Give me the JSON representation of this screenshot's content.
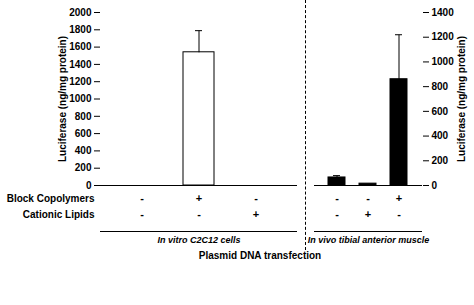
{
  "chart_data": [
    {
      "type": "bar",
      "ylabel": "Luciferase (ng/mg protein)",
      "xlabel": "In vitro C2C12 cells",
      "categories": [
        null,
        null,
        null
      ],
      "values": [
        0,
        1540,
        0
      ],
      "errors": [
        0,
        250,
        0
      ],
      "color": "#ffffff",
      "ylim": [
        0,
        2000
      ],
      "yticks": [
        0,
        200,
        400,
        600,
        800,
        1000,
        1200,
        1400,
        1600,
        1800,
        2000
      ],
      "rows": [
        [
          "-",
          "+",
          "-"
        ],
        [
          "-",
          "-",
          "+"
        ]
      ]
    },
    {
      "type": "bar",
      "ylabel": "Luciferase (ng/mg protein)",
      "xlabel": "In vivo tibial anterior muscle",
      "categories": [
        null,
        null,
        null
      ],
      "values": [
        65,
        15,
        860
      ],
      "errors": [
        15,
        0,
        360
      ],
      "color": "#000000",
      "ylim": [
        0,
        1400
      ],
      "yticks": [
        0,
        200,
        400,
        600,
        800,
        1000,
        1200,
        1400
      ],
      "rows": [
        [
          "-",
          "-",
          "+"
        ],
        [
          "-",
          "+",
          "-"
        ]
      ]
    }
  ],
  "row_labels": [
    "Block Copolymers",
    "Cationic Lipids"
  ],
  "caption": "Plasmid DNA transfection"
}
